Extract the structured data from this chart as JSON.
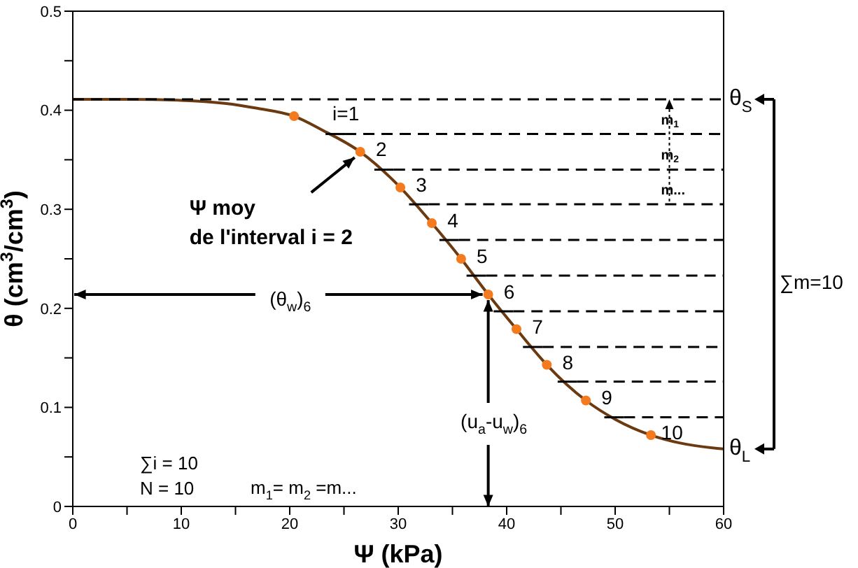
{
  "chart_data": {
    "type": "line",
    "xlabel": "Ψ (kPa)",
    "ylabel": "θ (cm$^{3}$/cm$^{3}$)",
    "xlim": [
      0,
      60
    ],
    "xticks": [
      0,
      {
        "value": 5,
        "label": null
      },
      10,
      {
        "value": 15,
        "label": null
      },
      20,
      {
        "value": 25,
        "label": null
      },
      30,
      {
        "value": 35,
        "label": null
      },
      40,
      {
        "value": 45,
        "label": null
      },
      50,
      {
        "value": 55,
        "label": null
      },
      60
    ],
    "ylim": [
      0,
      0.5
    ],
    "yticks": [
      0,
      {
        "value": 0.05,
        "label": null
      },
      0.1,
      {
        "value": 0.15,
        "label": null
      },
      0.2,
      {
        "value": 0.25,
        "label": null
      },
      0.3,
      {
        "value": 0.35,
        "label": null
      },
      0.4,
      {
        "value": 0.45,
        "label": null
      },
      0.5
    ],
    "grid": false,
    "line_style": "solid",
    "series": [
      {
        "color": "#6b3a10",
        "x": [
          0,
          5,
          10,
          14,
          17,
          20.4,
          23,
          26.5,
          30.2,
          33.1,
          35.8,
          38.3,
          40.9,
          43.7,
          47.3,
          50,
          53.3,
          56,
          60
        ],
        "values": [
          0.411,
          0.411,
          0.41,
          0.407,
          0.402,
          0.394,
          0.38,
          0.358,
          0.322,
          0.286,
          0.25,
          0.214,
          0.179,
          0.143,
          0.107,
          0.088,
          0.072,
          0.064,
          0.058
        ]
      },
      {
        "type": "scatter",
        "marker": "circle",
        "color": "#f47a20",
        "x": [
          20.4,
          26.5,
          30.2,
          33.1,
          35.8,
          38.3,
          40.9,
          43.7,
          47.3,
          53.3
        ],
        "values": [
          0.394,
          0.358,
          0.322,
          0.286,
          0.25,
          0.214,
          0.179,
          0.143,
          0.107,
          0.072
        ]
      },
      {
        "color": "#000000",
        "line_style": "dashed",
        "x": [
          0,
          60
        ],
        "values": [
          0.411,
          0.411
        ]
      },
      {
        "type": "line",
        "color": "#000000",
        "line_style": "dashed",
        "x": [
          25.1,
          60
        ],
        "values": [
          0.376,
          0.376
        ]
      },
      {
        "type": "line",
        "color": "#000000",
        "line_style": "dashed",
        "x": [
          29.6,
          60
        ],
        "values": [
          0.34,
          0.34
        ]
      },
      {
        "type": "line",
        "color": "#000000",
        "line_style": "dashed",
        "x": [
          32.8,
          60
        ],
        "values": [
          0.305,
          0.305
        ]
      },
      {
        "type": "line",
        "color": "#000000",
        "line_style": "dashed",
        "x": [
          35.6,
          60
        ],
        "values": [
          0.269,
          0.269
        ]
      },
      {
        "type": "line",
        "color": "#000000",
        "line_style": "dashed",
        "x": [
          38.1,
          60
        ],
        "values": [
          0.233,
          0.233
        ]
      },
      {
        "type": "line",
        "color": "#000000",
        "line_style": "dashed",
        "x": [
          40.6,
          60
        ],
        "values": [
          0.197,
          0.197
        ]
      },
      {
        "type": "line",
        "color": "#000000",
        "line_style": "dashed",
        "x": [
          43.3,
          60
        ],
        "values": [
          0.161,
          0.161
        ]
      },
      {
        "type": "line",
        "color": "#000000",
        "line_style": "dashed",
        "x": [
          46.5,
          60
        ],
        "values": [
          0.126,
          0.126
        ]
      },
      {
        "type": "line",
        "color": "#000000",
        "line_style": "dashed",
        "x": [
          50.8,
          60
        ],
        "values": [
          0.09,
          0.09
        ]
      },
      {
        "type": "line",
        "color": "#000000",
        "x": [
          23.3,
          25.1
        ],
        "values": [
          0.376,
          0.376
        ]
      },
      {
        "type": "line",
        "color": "#000000",
        "x": [
          27.8,
          29.6
        ],
        "values": [
          0.34,
          0.34
        ]
      },
      {
        "type": "line",
        "color": "#000000",
        "x": [
          31,
          32.8
        ],
        "values": [
          0.305,
          0.305
        ]
      },
      {
        "type": "line",
        "color": "#000000",
        "x": [
          33.8,
          35.6
        ],
        "values": [
          0.269,
          0.269
        ]
      },
      {
        "type": "line",
        "color": "#000000",
        "x": [
          36.3,
          38.1
        ],
        "values": [
          0.233,
          0.233
        ]
      },
      {
        "type": "line",
        "color": "#000000",
        "x": [
          38.8,
          40.6
        ],
        "values": [
          0.197,
          0.197
        ]
      },
      {
        "type": "line",
        "color": "#000000",
        "x": [
          41.5,
          43.3
        ],
        "values": [
          0.161,
          0.161
        ]
      },
      {
        "type": "line",
        "color": "#000000",
        "x": [
          44.7,
          46.5
        ],
        "values": [
          0.126,
          0.126
        ]
      },
      {
        "type": "line",
        "color": "#000000",
        "x": [
          49,
          50.8
        ],
        "values": [
          0.09,
          0.09
        ]
      }
    ],
    "annotations": [
      "i=1",
      "2",
      "3",
      "4",
      "5",
      "6",
      "7",
      "8",
      "9",
      "10",
      {
        "text": "Ψ moy\nde l'interval i = 2",
        "x": 26.5,
        "y": 0.358
      },
      {
        "text": "(θ$_{w}$)$_{6}$",
        "x": 38.3,
        "y": 0.214
      },
      {
        "text": "(u$_{a}$-u$_{w}$)$_{6}$",
        "x": 38.3,
        "y": 0.214
      },
      "m$_{1}$",
      "m$_{2}$",
      {
        "text": "m...",
        "x": 55,
        "y": 0.305
      },
      "θ$_{S}$",
      "θ$_{L}$",
      "∑m=10",
      "∑i = 10",
      "N = 10",
      "m$_{1}$= m$_{2}$ =m..."
    ]
  }
}
